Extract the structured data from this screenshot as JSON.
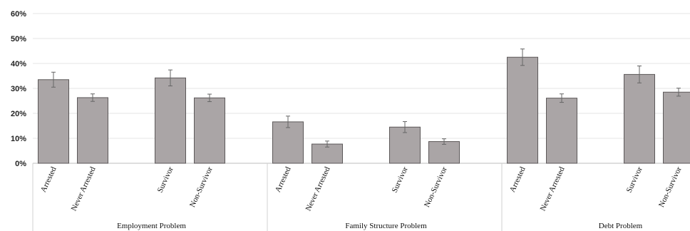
{
  "chart_data": {
    "type": "bar",
    "y_ticks": [
      "0%",
      "10%",
      "20%",
      "30%",
      "40%",
      "50%",
      "60%"
    ],
    "ylim": [
      0,
      60
    ],
    "grid": true,
    "legend": "none",
    "groups": [
      {
        "label": "Employment Problem",
        "bars": [
          {
            "category": "Arrested",
            "value": 33.5,
            "err": 3.0
          },
          {
            "category": "Never Arrested",
            "value": 26.3,
            "err": 1.5
          },
          {
            "category": "Survivor",
            "value": 34.2,
            "err": 3.2
          },
          {
            "category": "Non-Survivor",
            "value": 26.2,
            "err": 1.5
          }
        ]
      },
      {
        "label": "Family Structure Problem",
        "bars": [
          {
            "category": "Arrested",
            "value": 16.6,
            "err": 2.3
          },
          {
            "category": "Never Arrested",
            "value": 7.7,
            "err": 1.2
          },
          {
            "category": "Survivor",
            "value": 14.5,
            "err": 2.2
          },
          {
            "category": "Non-Survivor",
            "value": 8.7,
            "err": 1.1
          }
        ]
      },
      {
        "label": "Debt Problem",
        "bars": [
          {
            "category": "Arrested",
            "value": 42.5,
            "err": 3.3
          },
          {
            "category": "Never Arrested",
            "value": 26.1,
            "err": 1.7
          },
          {
            "category": "Survivor",
            "value": 35.6,
            "err": 3.4
          },
          {
            "category": "Non-Survivor",
            "value": 28.5,
            "err": 1.6
          }
        ]
      }
    ]
  }
}
